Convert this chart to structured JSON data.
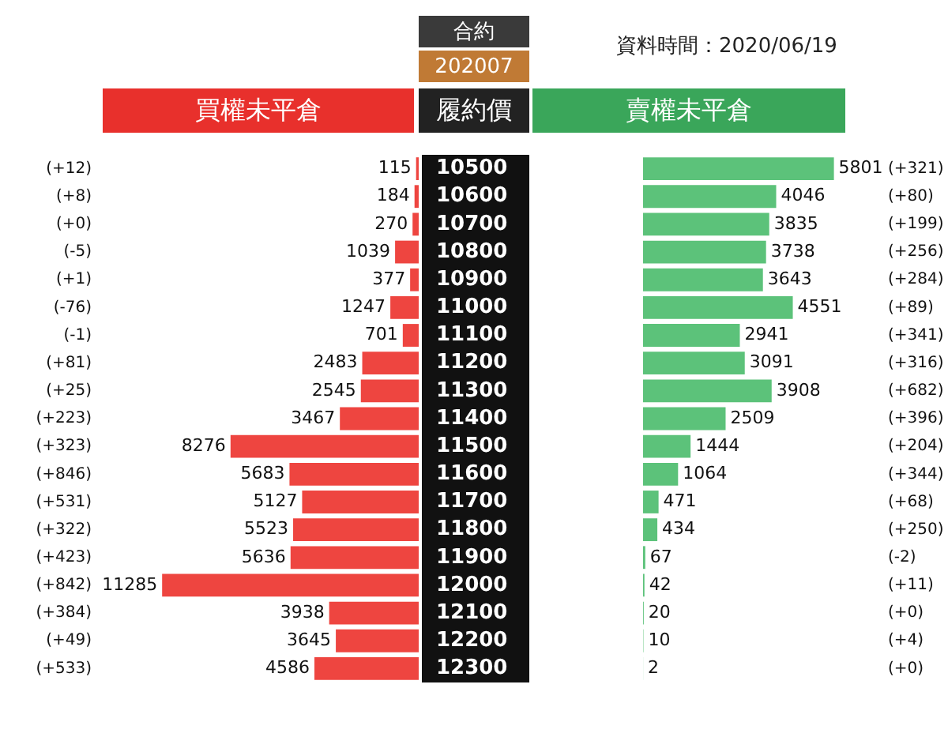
{
  "chart_data": [
    {
      "type": "bar",
      "orientation": "horizontal",
      "title": "買權未平倉",
      "ylabel": "履約價",
      "annotations": [
        "合約",
        "202007",
        "(+12)",
        "(+8)",
        "(+0)",
        "(-5)",
        "(+1)",
        "(-76)",
        "(-1)",
        "(+81)",
        "(+25)",
        "(+223)",
        "(+323)",
        "(+846)",
        "(+531)",
        "(+322)",
        "(+423)",
        "(+842)",
        "(+384)",
        "(+49)",
        "(+533)"
      ],
      "categories": [
        "10500",
        "10600",
        "10700",
        "10800",
        "10900",
        "11000",
        "11100",
        "11200",
        "11300",
        "11400",
        "11500",
        "11600",
        "11700",
        "11800",
        "11900",
        "12000",
        "12100",
        "12200",
        "12300"
      ],
      "values": [
        115,
        184,
        270,
        1039,
        377,
        1247,
        701,
        2483,
        2545,
        3467,
        8276,
        5683,
        5127,
        5523,
        5636,
        11285,
        3938,
        3645,
        4586
      ],
      "color": "#ee4540",
      "data_labels": true,
      "tick_labels": "y",
      "legend": false
    },
    {
      "type": "bar",
      "orientation": "horizontal",
      "title": "賣權未平倉",
      "subtitle": "資料時間：2020/06/19",
      "annotations": [
        "(+321)",
        "(+80)",
        "(+199)",
        "(+256)",
        "(+284)",
        "(+89)",
        "(+341)",
        "(+316)",
        "(+682)",
        "(+396)",
        "(+204)",
        "(+344)",
        "(+68)",
        "(+250)",
        "(-2)",
        "(+11)",
        "(+0)",
        "(+4)",
        "(+0)"
      ],
      "categories": [
        "10500",
        "10600",
        "10700",
        "10800",
        "10900",
        "11000",
        "11100",
        "11200",
        "11300",
        "11400",
        "11500",
        "11600",
        "11700",
        "11800",
        "11900",
        "12000",
        "12100",
        "12200",
        "12300"
      ],
      "values": [
        5801,
        4046,
        3835,
        3738,
        3643,
        4551,
        2941,
        3091,
        3908,
        2509,
        1444,
        1064,
        471,
        434,
        67,
        42,
        20,
        10,
        2
      ],
      "color": "#5cc27a",
      "data_labels": true,
      "tick_labels": false,
      "legend": false
    }
  ]
}
